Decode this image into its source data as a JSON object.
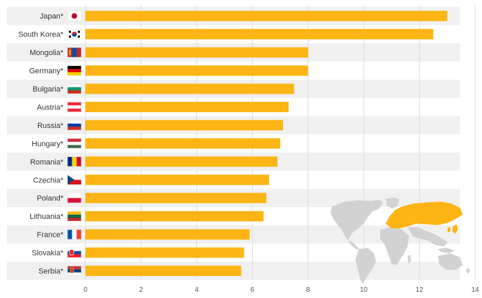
{
  "chart_data": {
    "type": "bar",
    "orientation": "horizontal",
    "categories": [
      "Japan*",
      "South Korea*",
      "Mongolia*",
      "Germany*",
      "Bulgaria*",
      "Austria*",
      "Russia*",
      "Hungary*",
      "Romania*",
      "Czechia*",
      "Poland*",
      "Lithuania*",
      "France*",
      "Slovakia*",
      "Serbia*"
    ],
    "values": [
      13.0,
      12.5,
      8.0,
      8.0,
      7.5,
      7.3,
      7.1,
      7.0,
      6.9,
      6.6,
      6.5,
      6.4,
      5.9,
      5.7,
      5.6
    ],
    "xlim": [
      0,
      14
    ],
    "xticks": [
      0,
      2,
      4,
      6,
      8,
      10,
      12,
      14
    ],
    "grid": true,
    "legend": "none",
    "title": "",
    "xlabel": "",
    "ylabel": ""
  },
  "colors": {
    "bar": "#fdb515",
    "highlight_region": "#fdb515",
    "map_base": "#d2d2d2",
    "row_band": "#f0f0f0",
    "grid": "#dcdcdc"
  },
  "flags": [
    "japan-flag-icon",
    "south-korea-flag-icon",
    "mongolia-flag-icon",
    "germany-flag-icon",
    "bulgaria-flag-icon",
    "austria-flag-icon",
    "russia-flag-icon",
    "hungary-flag-icon",
    "romania-flag-icon",
    "czechia-flag-icon",
    "poland-flag-icon",
    "lithuania-flag-icon",
    "france-flag-icon",
    "slovakia-flag-icon",
    "serbia-flag-icon"
  ],
  "decoration": "world-map-icon"
}
